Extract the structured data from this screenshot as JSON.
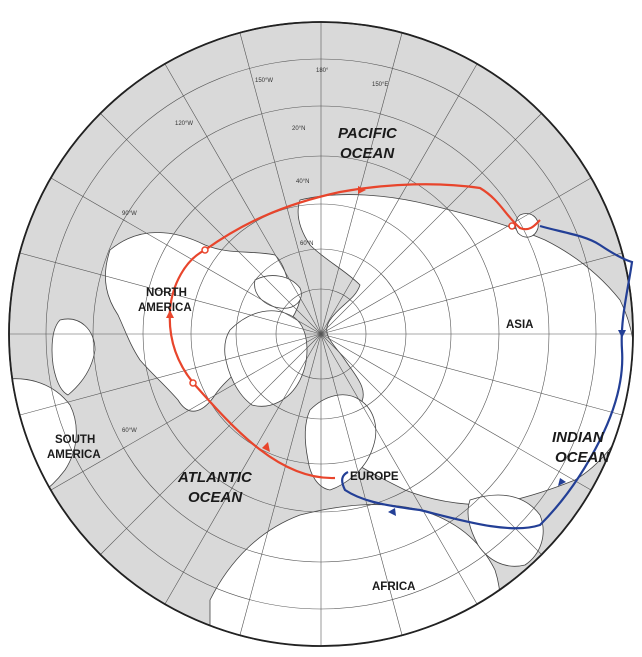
{
  "labels": {
    "pacific_1": "PACIFIC",
    "pacific_2": "OCEAN",
    "north_america_1": "NORTH",
    "north_america_2": "AMERICA",
    "asia": "ASIA",
    "south_america_1": "SOUTH",
    "south_america_2": "AMERICA",
    "atlantic_1": "ATLANTIC",
    "atlantic_2": "OCEAN",
    "europe": "EUROPE",
    "indian_1": "INDIAN",
    "indian_2": "OCEAN",
    "africa": "AFRICA"
  },
  "degree_labels": {
    "top": "180°",
    "upper_left": "150°W",
    "upper_right": "150°E",
    "left_upper": "120°W",
    "left_lower": "90°W",
    "lat_60": "60°N",
    "lat_40": "40°N",
    "lat_20": "20°N",
    "lower_left": "60°W"
  },
  "colors": {
    "ocean": "#d9d9d9",
    "land": "#ffffff",
    "grid": "#555555",
    "route_red": "#e8452c",
    "route_blue": "#233f96"
  }
}
